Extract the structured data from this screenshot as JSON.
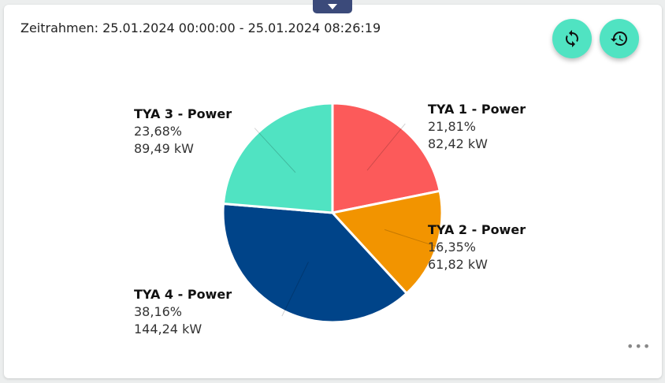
{
  "header": {
    "timeframe": "Zeitrahmen: 25.01.2024 00:00:00 - 25.01.2024 08:26:19"
  },
  "buttons": {
    "refresh_icon": "refresh-icon",
    "history_icon": "history-icon",
    "more_icon": "more-horizontal-icon",
    "more_label": "•••"
  },
  "chart_data": {
    "type": "pie",
    "slices": [
      {
        "name": "TYA 1 - Power",
        "percent_label": "21,81%",
        "value_label": "82,42 kW",
        "value": 82.42,
        "percent": 21.81,
        "color": "#fc5a5a"
      },
      {
        "name": "TYA 2 - Power",
        "percent_label": "16,35%",
        "value_label": "61,82 kW",
        "value": 61.82,
        "percent": 16.35,
        "color": "#f29400"
      },
      {
        "name": "TYA 4 - Power",
        "percent_label": "38,16%",
        "value_label": "144,24 kW",
        "value": 144.24,
        "percent": 38.16,
        "color": "#004489"
      },
      {
        "name": "TYA 3 - Power",
        "percent_label": "23,68%",
        "value_label": "89,49 kW",
        "value": 89.49,
        "percent": 23.68,
        "color": "#50e3c2"
      }
    ],
    "start_angle": "top",
    "direction": "clockwise",
    "legend": "none"
  }
}
